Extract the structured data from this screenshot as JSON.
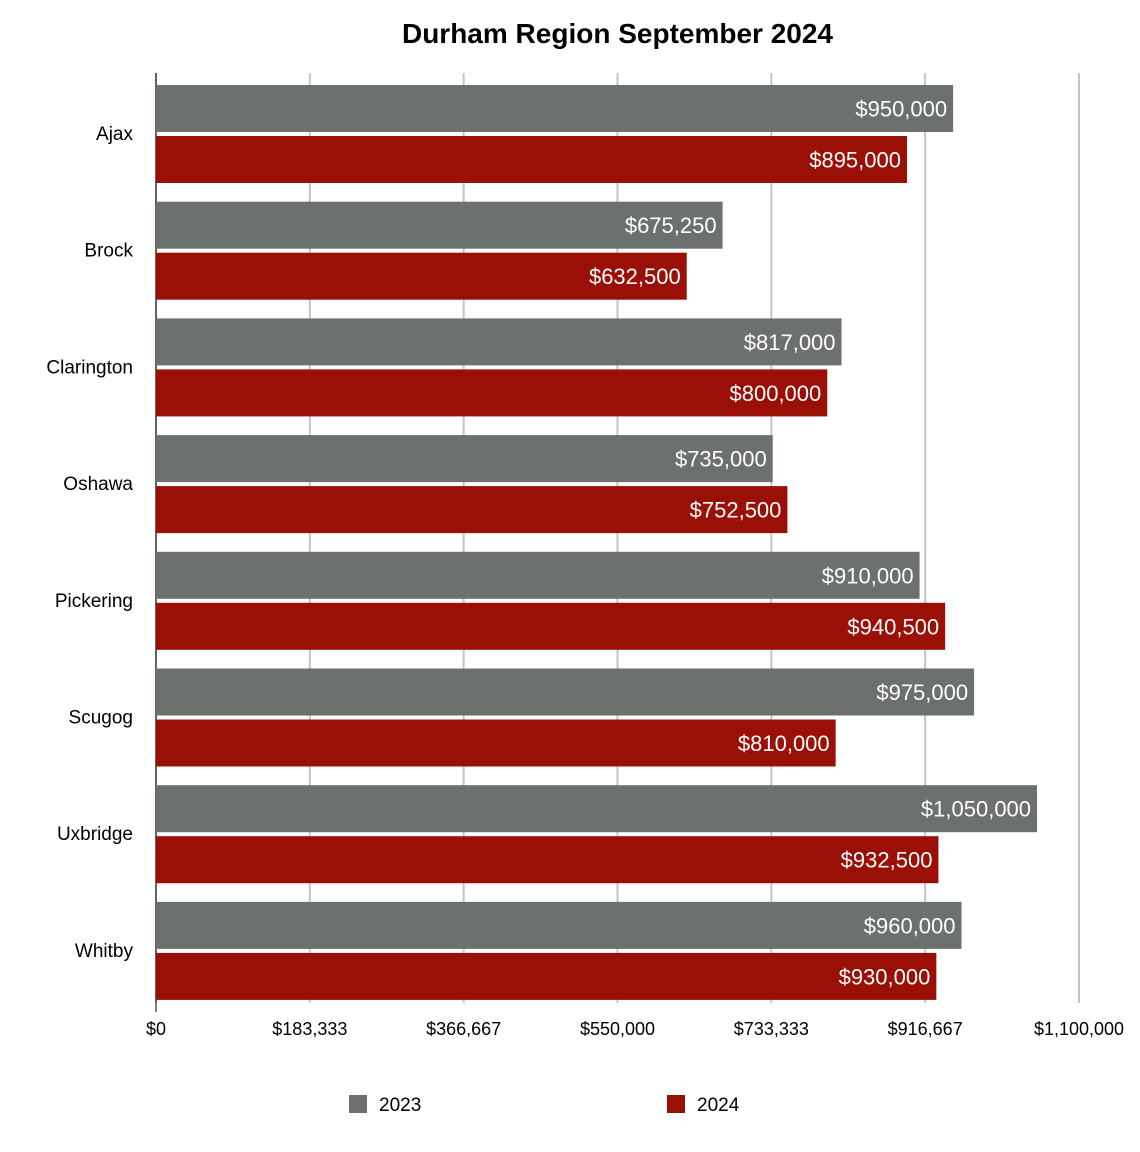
{
  "chart_data": {
    "type": "bar",
    "orientation": "horizontal",
    "title": "Durham Region September 2024",
    "categories": [
      "Ajax",
      "Brock",
      "Clarington",
      "Oshawa",
      "Pickering",
      "Scugog",
      "Uxbridge",
      "Whitby"
    ],
    "series": [
      {
        "name": "2023",
        "color": "#6d716e",
        "values": [
          950000,
          675250,
          817000,
          735000,
          910000,
          975000,
          1050000,
          960000
        ],
        "labels": [
          "$950,000",
          "$675,250",
          "$817,000",
          "$735,000",
          "$910,000",
          "$975,000",
          "$1,050,000",
          "$960,000"
        ]
      },
      {
        "name": "2024",
        "color": "#9a1007",
        "values": [
          895000,
          632500,
          800000,
          752500,
          940500,
          810000,
          932500,
          930000
        ],
        "labels": [
          "$895,000",
          "$632,500",
          "$800,000",
          "$752,500",
          "$940,500",
          "$810,000",
          "$932,500",
          "$930,000"
        ]
      }
    ],
    "xlim": [
      0,
      1100000
    ],
    "xticks": [
      0,
      183333,
      366667,
      550000,
      733333,
      916667,
      1100000
    ],
    "xtick_labels": [
      "$0",
      "$183,333",
      "$366,667",
      "$550,000",
      "$733,333",
      "$916,667",
      "$1,100,000"
    ],
    "xlabel": "",
    "ylabel": "",
    "grid": true,
    "legend_position": "bottom"
  }
}
